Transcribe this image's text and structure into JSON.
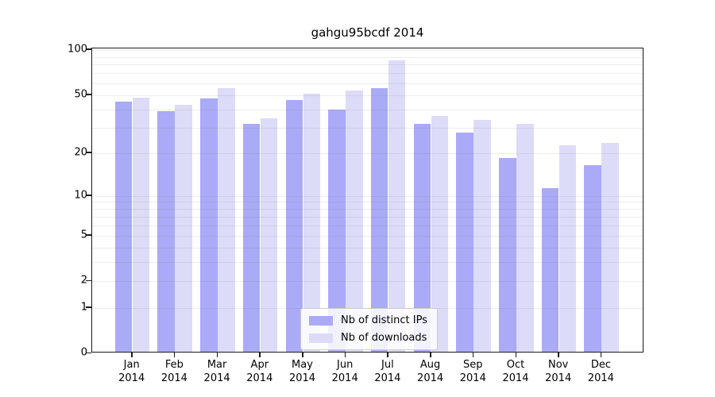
{
  "chart_data": {
    "type": "bar",
    "title": "gahgu95bcdf 2014",
    "categories": [
      "Jan",
      "Feb",
      "Mar",
      "Apr",
      "May",
      "Jun",
      "Jul",
      "Aug",
      "Sep",
      "Oct",
      "Nov",
      "Dec"
    ],
    "category_year": "2014",
    "series": [
      {
        "name": "Nb of distinct IPs",
        "color": "#aaaaf6",
        "values": [
          44,
          38,
          46,
          31,
          45,
          39,
          54,
          31,
          27,
          18,
          11,
          16
        ]
      },
      {
        "name": "Nb of downloads",
        "color": "#dcdcf8",
        "values": [
          47,
          42,
          54,
          34,
          50,
          52,
          83,
          35,
          33,
          31,
          22,
          23
        ]
      }
    ],
    "yticks": [
      0,
      1,
      2,
      5,
      10,
      20,
      50,
      100
    ],
    "minor_gridlines": [
      1,
      2,
      3,
      4,
      5,
      6,
      7,
      8,
      9,
      10,
      20,
      30,
      40,
      50,
      60,
      70,
      80,
      90,
      100
    ],
    "ylim": [
      0,
      102
    ],
    "yscale": "log1p",
    "grid": "horizontal",
    "legend_position": "bottom-center",
    "colors": {
      "spine": "#1a1a1a",
      "grid": "#e3e3e3",
      "background": "#ffffff"
    }
  }
}
